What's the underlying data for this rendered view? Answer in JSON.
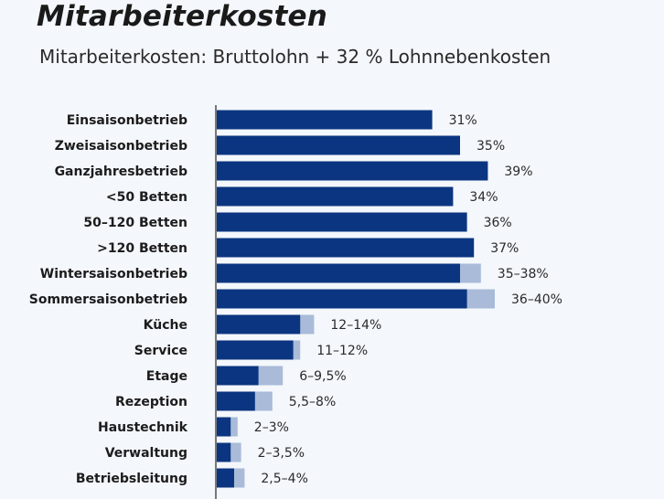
{
  "title": "Mitarbeiterkosten",
  "subtitle": "Mitarbeiterkosten: Bruttolohn + 32 % Lohnnebenkosten",
  "chart_data": {
    "type": "bar",
    "orientation": "horizontal",
    "categories": [
      "Einsaisonbetrieb",
      "Zweisaisonbetrieb",
      "Ganzjahresbetrieb",
      "<50 Betten",
      "50–120 Betten",
      ">120 Betten",
      "Wintersaisonbetrieb",
      "Sommersaisonbetrieb",
      "Küche",
      "Service",
      "Etage",
      "Rezeption",
      "Haustechnik",
      "Verwaltung",
      "Betriebsleitung"
    ],
    "min_values": [
      31,
      35,
      39,
      34,
      36,
      37,
      35,
      36,
      12,
      11,
      6,
      5.5,
      2,
      2,
      2.5
    ],
    "max_values": [
      31,
      35,
      39,
      34,
      36,
      37,
      38,
      40,
      14,
      12,
      9.5,
      8,
      3,
      3.5,
      4
    ],
    "labels": [
      "31%",
      "35%",
      "39%",
      "34%",
      "36%",
      "37%",
      "35–38%",
      "36–40%",
      "12–14%",
      "11–12%",
      "6–9,5%",
      "5,5–8%",
      "2–3%",
      "2–3,5%",
      "2,5–4%"
    ],
    "unit": "%",
    "grid": false,
    "colors": {
      "min": "#0b3580",
      "range": "#a9bbd8",
      "axis": "#333333"
    }
  }
}
